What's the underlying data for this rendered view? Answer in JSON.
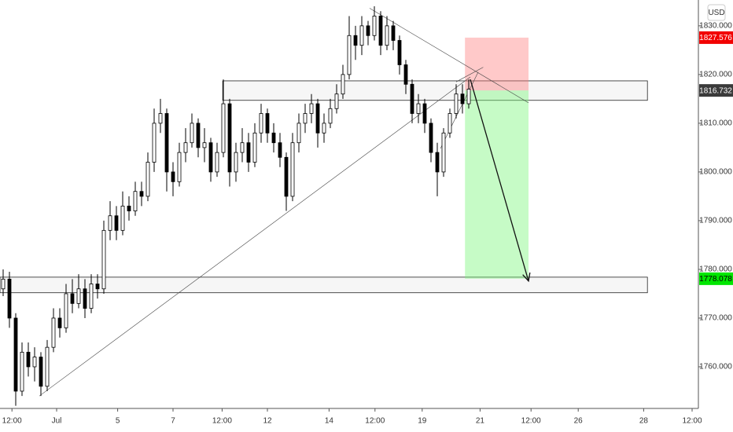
{
  "chart_data": {
    "type": "candlestick",
    "currency": "USD",
    "up_color": "#ffffff",
    "down_color": "#000000",
    "candles": [
      [
        1776,
        1780,
        1774.5,
        1778
      ],
      [
        1778,
        1779.5,
        1768,
        1770
      ],
      [
        1770,
        1771,
        1752,
        1755
      ],
      [
        1755,
        1765,
        1754,
        1763
      ],
      [
        1763,
        1765,
        1758,
        1760
      ],
      [
        1760,
        1764,
        1757,
        1762
      ],
      [
        1762,
        1763,
        1754,
        1756
      ],
      [
        1756,
        1765.5,
        1755,
        1764
      ],
      [
        1764,
        1772,
        1763,
        1770
      ],
      [
        1770,
        1772,
        1766,
        1768
      ],
      [
        1768,
        1777,
        1767,
        1775
      ],
      [
        1775,
        1778,
        1771,
        1773
      ],
      [
        1773,
        1779,
        1772,
        1776
      ],
      [
        1776,
        1778,
        1770,
        1772
      ],
      [
        1772,
        1779,
        1771,
        1777
      ],
      [
        1777,
        1779,
        1774,
        1776
      ],
      [
        1776,
        1790,
        1775,
        1788
      ],
      [
        1788,
        1794,
        1786,
        1791
      ],
      [
        1791,
        1793,
        1786,
        1788
      ],
      [
        1788,
        1796,
        1787,
        1793
      ],
      [
        1793,
        1795,
        1790,
        1792
      ],
      [
        1792,
        1798,
        1791,
        1796
      ],
      [
        1796,
        1798,
        1793,
        1795
      ],
      [
        1795,
        1804,
        1794,
        1802
      ],
      [
        1802,
        1813,
        1800,
        1810
      ],
      [
        1810,
        1815,
        1808,
        1812
      ],
      [
        1812,
        1813,
        1796,
        1800
      ],
      [
        1800,
        1802,
        1795,
        1798
      ],
      [
        1798,
        1806,
        1797,
        1804
      ],
      [
        1804,
        1809,
        1802,
        1806
      ],
      [
        1806,
        1812,
        1805,
        1810
      ],
      [
        1810,
        1811,
        1803,
        1805
      ],
      [
        1805,
        1809,
        1802,
        1806
      ],
      [
        1806,
        1807,
        1798,
        1800
      ],
      [
        1800,
        1806,
        1799,
        1804
      ],
      [
        1804,
        1819,
        1803,
        1814
      ],
      [
        1814,
        1815,
        1797,
        1800
      ],
      [
        1800,
        1806,
        1798,
        1804
      ],
      [
        1804,
        1809,
        1802,
        1806
      ],
      [
        1806,
        1808,
        1800,
        1802
      ],
      [
        1802,
        1810,
        1801,
        1808
      ],
      [
        1808,
        1814,
        1806,
        1812
      ],
      [
        1812,
        1813,
        1806,
        1808
      ],
      [
        1808,
        1810,
        1804,
        1806
      ],
      [
        1806,
        1808,
        1801,
        1803
      ],
      [
        1803,
        1804,
        1792,
        1795
      ],
      [
        1795,
        1808,
        1794,
        1806
      ],
      [
        1806,
        1812,
        1804,
        1810
      ],
      [
        1810,
        1814,
        1808,
        1812
      ],
      [
        1812,
        1816,
        1810,
        1814
      ],
      [
        1814,
        1815,
        1805,
        1808
      ],
      [
        1808,
        1812,
        1806,
        1810
      ],
      [
        1810,
        1815,
        1809,
        1813
      ],
      [
        1813,
        1818,
        1812,
        1816
      ],
      [
        1816,
        1822,
        1815,
        1820
      ],
      [
        1820,
        1832,
        1819,
        1828
      ],
      [
        1828,
        1830,
        1823,
        1826
      ],
      [
        1826,
        1832,
        1824,
        1830
      ],
      [
        1830,
        1831,
        1826,
        1828
      ],
      [
        1828,
        1834,
        1827,
        1832
      ],
      [
        1832,
        1833,
        1824,
        1826
      ],
      [
        1826,
        1832,
        1825,
        1830
      ],
      [
        1830,
        1831,
        1825,
        1827
      ],
      [
        1827,
        1828,
        1820,
        1822
      ],
      [
        1822,
        1823,
        1816,
        1818
      ],
      [
        1818,
        1819,
        1810,
        1812
      ],
      [
        1812,
        1816,
        1810,
        1814
      ],
      [
        1814,
        1815,
        1808,
        1810
      ],
      [
        1810,
        1811,
        1802,
        1804
      ],
      [
        1804,
        1806,
        1795,
        1800
      ],
      [
        1800,
        1809,
        1799,
        1808
      ],
      [
        1808,
        1813,
        1807,
        1812
      ],
      [
        1812,
        1818,
        1811,
        1816
      ],
      [
        1816,
        1818,
        1812,
        1814
      ],
      [
        1814,
        1819,
        1813,
        1817
      ]
    ],
    "xlim": [
      -0.5,
      110.5
    ],
    "ylim": [
      1751.45,
      1835.3
    ],
    "xticks": [
      {
        "value": 1.4,
        "label": "12:00"
      },
      {
        "value": 8.5,
        "label": "Jul"
      },
      {
        "value": 18.2,
        "label": "5"
      },
      {
        "value": 27,
        "label": "7"
      },
      {
        "value": 34.8,
        "label": "12:00"
      },
      {
        "value": 42,
        "label": "12"
      },
      {
        "value": 51.8,
        "label": "14"
      },
      {
        "value": 59.1,
        "label": "12:00"
      },
      {
        "value": 66.6,
        "label": "19"
      },
      {
        "value": 75.8,
        "label": "21"
      },
      {
        "value": 83.9,
        "label": "12:00"
      },
      {
        "value": 91.4,
        "label": "26"
      },
      {
        "value": 101.8,
        "label": "28"
      },
      {
        "value": 109.5,
        "label": "12:00"
      }
    ],
    "yticks": [
      {
        "value": 1760,
        "label": "1760.000"
      },
      {
        "value": 1770,
        "label": "1770.000"
      },
      {
        "value": 1780,
        "label": "1780.000"
      },
      {
        "value": 1790,
        "label": "1790.000"
      },
      {
        "value": 1800,
        "label": "1800.000"
      },
      {
        "value": 1810,
        "label": "1810.000"
      },
      {
        "value": 1820,
        "label": "1820.000"
      },
      {
        "value": 1830,
        "label": "1830.000"
      }
    ],
    "price_markers": [
      {
        "value": 1827.576,
        "color": "#f20000"
      },
      {
        "value": 1816.732,
        "color": "#3a3a3a"
      },
      {
        "value": 1778.078,
        "color": "#00e600"
      }
    ],
    "zones": [
      {
        "from": 34.9,
        "to": 102.4,
        "top": 1818.7,
        "bottom": 1814.7
      },
      {
        "from": -0.5,
        "to": 102.4,
        "top": 1778.4,
        "bottom": 1775.2
      }
    ],
    "position": {
      "from": 73.4,
      "to": 83.5,
      "entry": 1816.732,
      "stop": 1827.576,
      "target": 1778.078
    },
    "trendlines": [
      {
        "x1": 5.75,
        "y1": 1754,
        "x2": 74.25,
        "y2": 1819.5
      },
      {
        "x1": 58.25,
        "y1": 1833.6,
        "x2": 83.5,
        "y2": 1814.2
      },
      {
        "x1": 69.5,
        "y1": 1804.8,
        "x2": 75.5,
        "y2": 1820.5
      },
      {
        "x1": 72.0,
        "y1": 1818.5,
        "x2": 76.3,
        "y2": 1821.5
      }
    ],
    "arrow": {
      "x1": 74.25,
      "y1": 1819,
      "x2": 83.5,
      "y2": 1777.6
    }
  }
}
